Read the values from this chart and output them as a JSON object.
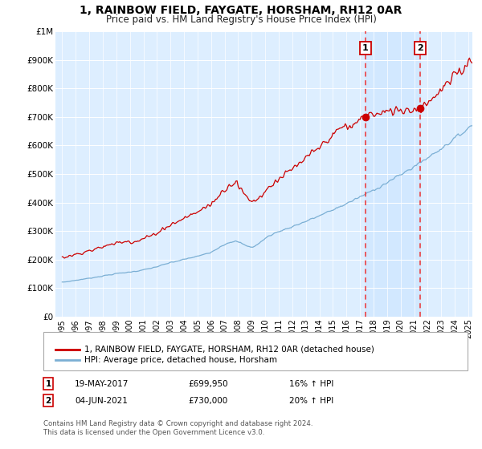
{
  "title": "1, RAINBOW FIELD, FAYGATE, HORSHAM, RH12 0AR",
  "subtitle": "Price paid vs. HM Land Registry's House Price Index (HPI)",
  "title_fontsize": 10,
  "subtitle_fontsize": 8.5,
  "red_line_label": "1, RAINBOW FIELD, FAYGATE, HORSHAM, RH12 0AR (detached house)",
  "blue_line_label": "HPI: Average price, detached house, Horsham",
  "sale1_date": "19-MAY-2017",
  "sale1_price": 699950,
  "sale1_price_str": "£699,950",
  "sale1_hpi": "16%",
  "sale2_date": "04-JUN-2021",
  "sale2_price": 730000,
  "sale2_price_str": "£730,000",
  "sale2_hpi": "20%",
  "footnote_line1": "Contains HM Land Registry data © Crown copyright and database right 2024.",
  "footnote_line2": "This data is licensed under the Open Government Licence v3.0.",
  "ylim": [
    0,
    1000000
  ],
  "yticks": [
    0,
    100000,
    200000,
    300000,
    400000,
    500000,
    600000,
    700000,
    800000,
    900000,
    1000000
  ],
  "ytick_labels": [
    "£0",
    "£100K",
    "£200K",
    "£300K",
    "£400K",
    "£500K",
    "£600K",
    "£700K",
    "£800K",
    "£900K",
    "£1M"
  ],
  "x_start_year": 1995,
  "x_end_year": 2025,
  "background_color": "#ffffff",
  "plot_bg_color": "#ddeeff",
  "grid_color": "#ffffff",
  "red_color": "#cc0000",
  "blue_color": "#7bafd4",
  "sale1_x": 2017.38,
  "sale2_x": 2021.45,
  "vline_color": "#ee3333",
  "highlight_alpha": 0.35
}
